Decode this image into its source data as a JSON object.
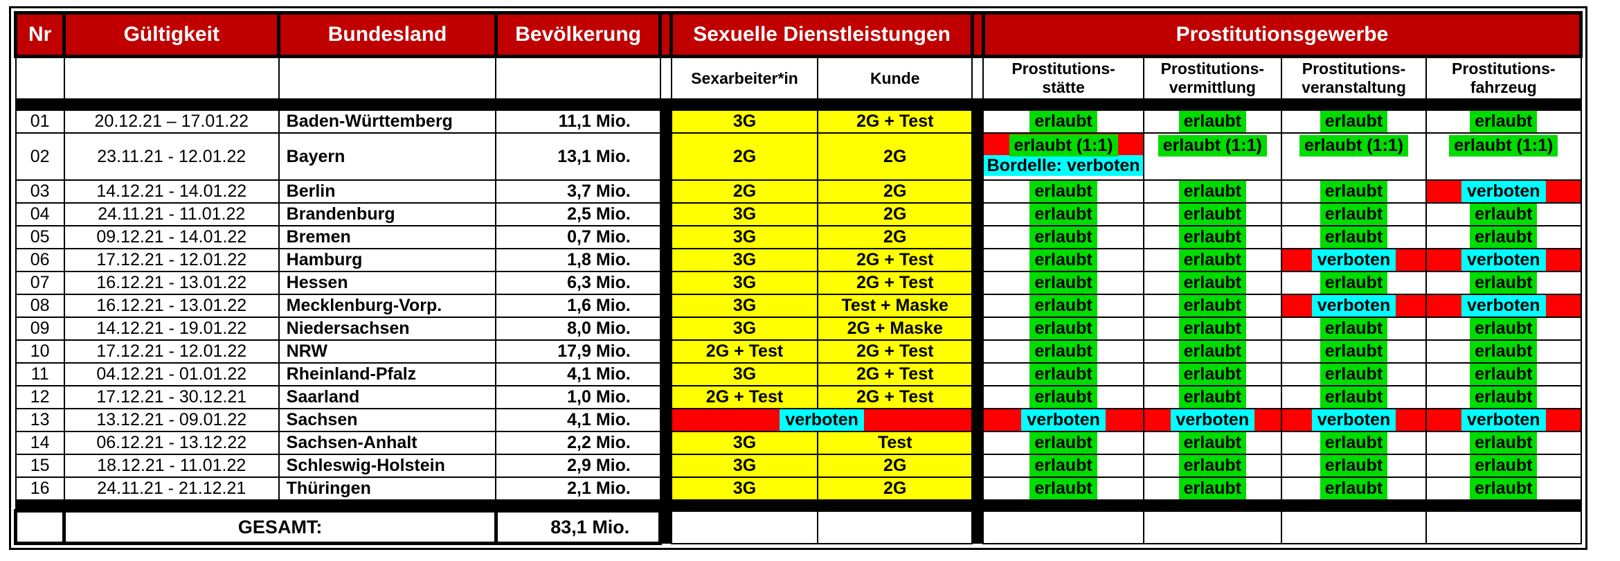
{
  "colors": {
    "header_red": "#C00000",
    "cell_yellow": "#FFFF00",
    "highlight_green": "#00DB00",
    "cell_red": "#FF0000",
    "highlight_cyan": "#00FFFF"
  },
  "table": {
    "header": {
      "nr": "Nr",
      "gueltigkeit": "Gültigkeit",
      "bundesland": "Bundesland",
      "bevoelkerung": "Bevölkerung",
      "sexuelle_dienstleistungen": "Sexuelle Dienstleistungen",
      "prostitutionsgewerbe": "Prostitutionsgewerbe",
      "sub": {
        "sexarbeiter": "Sexarbeiter*in",
        "kunde": "Kunde",
        "staette": {
          "l1": "Prostitutions-",
          "l2": "stätte"
        },
        "vermittlung": {
          "l1": "Prostitutions-",
          "l2": "vermittlung"
        },
        "veranstaltung": {
          "l1": "Prostitutions-",
          "l2": "veranstaltung"
        },
        "fahrzeug": {
          "l1": "Prostitutions-",
          "l2": "fahrzeug"
        }
      }
    },
    "rows": [
      {
        "nr": "01",
        "gueltigkeit": "20.12.21 – 17.01.22",
        "bundesland": "Baden-Württemberg",
        "bevoelkerung": "11,1 Mio.",
        "sexarbeiter": {
          "text": "3G",
          "kind": "yellow"
        },
        "kunde": {
          "text": "2G + Test",
          "kind": "yellow"
        },
        "staette": {
          "text": "erlaubt",
          "kind": "erlaubt"
        },
        "vermittlung": {
          "text": "erlaubt",
          "kind": "erlaubt"
        },
        "veranstaltung": {
          "text": "erlaubt",
          "kind": "erlaubt"
        },
        "fahrzeug": {
          "text": "erlaubt",
          "kind": "erlaubt"
        }
      },
      {
        "nr": "02",
        "tall": true,
        "gueltigkeit": "23.11.21 - 12.01.22",
        "bundesland": "Bayern",
        "bevoelkerung": "13,1 Mio.",
        "sexarbeiter": {
          "text": "2G",
          "kind": "yellow"
        },
        "kunde": {
          "text": "2G",
          "kind": "yellow"
        },
        "staette": {
          "text": "erlaubt (1:1)",
          "note": "Bordelle: verboten",
          "kind": "bayern"
        },
        "vermittlung": {
          "text": "erlaubt (1:1)",
          "kind": "erlaubt",
          "top": true
        },
        "veranstaltung": {
          "text": "erlaubt (1:1)",
          "kind": "erlaubt",
          "top": true
        },
        "fahrzeug": {
          "text": "erlaubt (1:1)",
          "kind": "erlaubt",
          "top": true
        }
      },
      {
        "nr": "03",
        "gueltigkeit": "14.12.21 - 14.01.22",
        "bundesland": "Berlin",
        "bevoelkerung": "3,7 Mio.",
        "sexarbeiter": {
          "text": "2G",
          "kind": "yellow"
        },
        "kunde": {
          "text": "2G",
          "kind": "yellow"
        },
        "staette": {
          "text": "erlaubt",
          "kind": "erlaubt"
        },
        "vermittlung": {
          "text": "erlaubt",
          "kind": "erlaubt"
        },
        "veranstaltung": {
          "text": "erlaubt",
          "kind": "erlaubt"
        },
        "fahrzeug": {
          "text": "verboten",
          "kind": "verboten"
        }
      },
      {
        "nr": "04",
        "gueltigkeit": "24.11.21 - 11.01.22",
        "bundesland": "Brandenburg",
        "bevoelkerung": "2,5 Mio.",
        "sexarbeiter": {
          "text": "3G",
          "kind": "yellow"
        },
        "kunde": {
          "text": "2G",
          "kind": "yellow"
        },
        "staette": {
          "text": "erlaubt",
          "kind": "erlaubt"
        },
        "vermittlung": {
          "text": "erlaubt",
          "kind": "erlaubt"
        },
        "veranstaltung": {
          "text": "erlaubt",
          "kind": "erlaubt"
        },
        "fahrzeug": {
          "text": "erlaubt",
          "kind": "erlaubt"
        }
      },
      {
        "nr": "05",
        "gueltigkeit": "09.12.21 - 14.01.22",
        "bundesland": "Bremen",
        "bevoelkerung": "0,7 Mio.",
        "sexarbeiter": {
          "text": "3G",
          "kind": "yellow"
        },
        "kunde": {
          "text": "2G",
          "kind": "yellow"
        },
        "staette": {
          "text": "erlaubt",
          "kind": "erlaubt"
        },
        "vermittlung": {
          "text": "erlaubt",
          "kind": "erlaubt"
        },
        "veranstaltung": {
          "text": "erlaubt",
          "kind": "erlaubt"
        },
        "fahrzeug": {
          "text": "erlaubt",
          "kind": "erlaubt"
        }
      },
      {
        "nr": "06",
        "gueltigkeit": "17.12.21 - 12.01.22",
        "bundesland": "Hamburg",
        "bevoelkerung": "1,8 Mio.",
        "sexarbeiter": {
          "text": "3G",
          "kind": "yellow"
        },
        "kunde": {
          "text": "2G + Test",
          "kind": "yellow"
        },
        "staette": {
          "text": "erlaubt",
          "kind": "erlaubt"
        },
        "vermittlung": {
          "text": "erlaubt",
          "kind": "erlaubt"
        },
        "veranstaltung": {
          "text": "verboten",
          "kind": "verboten"
        },
        "fahrzeug": {
          "text": "verboten",
          "kind": "verboten"
        }
      },
      {
        "nr": "07",
        "gueltigkeit": "16.12.21 - 13.01.22",
        "bundesland": "Hessen",
        "bevoelkerung": "6,3 Mio.",
        "sexarbeiter": {
          "text": "3G",
          "kind": "yellow"
        },
        "kunde": {
          "text": "2G + Test",
          "kind": "yellow"
        },
        "staette": {
          "text": "erlaubt",
          "kind": "erlaubt"
        },
        "vermittlung": {
          "text": "erlaubt",
          "kind": "erlaubt"
        },
        "veranstaltung": {
          "text": "erlaubt",
          "kind": "erlaubt"
        },
        "fahrzeug": {
          "text": "erlaubt",
          "kind": "erlaubt"
        }
      },
      {
        "nr": "08",
        "gueltigkeit": "16.12.21 - 13.01.22",
        "bundesland": "Mecklenburg-Vorp.",
        "bevoelkerung": "1,6 Mio.",
        "sexarbeiter": {
          "text": "3G",
          "kind": "yellow"
        },
        "kunde": {
          "text": "Test + Maske",
          "kind": "yellow"
        },
        "staette": {
          "text": "erlaubt",
          "kind": "erlaubt"
        },
        "vermittlung": {
          "text": "erlaubt",
          "kind": "erlaubt"
        },
        "veranstaltung": {
          "text": "verboten",
          "kind": "verboten"
        },
        "fahrzeug": {
          "text": "verboten",
          "kind": "verboten"
        }
      },
      {
        "nr": "09",
        "gueltigkeit": "14.12.21 - 19.01.22",
        "bundesland": "Niedersachsen",
        "bevoelkerung": "8,0 Mio.",
        "sexarbeiter": {
          "text": "3G",
          "kind": "yellow"
        },
        "kunde": {
          "text": "2G + Maske",
          "kind": "yellow"
        },
        "staette": {
          "text": "erlaubt",
          "kind": "erlaubt"
        },
        "vermittlung": {
          "text": "erlaubt",
          "kind": "erlaubt"
        },
        "veranstaltung": {
          "text": "erlaubt",
          "kind": "erlaubt"
        },
        "fahrzeug": {
          "text": "erlaubt",
          "kind": "erlaubt"
        }
      },
      {
        "nr": "10",
        "gueltigkeit": "17.12.21 - 12.01.22",
        "bundesland": "NRW",
        "bevoelkerung": "17,9 Mio.",
        "sexarbeiter": {
          "text": "2G + Test",
          "kind": "yellow"
        },
        "kunde": {
          "text": "2G + Test",
          "kind": "yellow"
        },
        "staette": {
          "text": "erlaubt",
          "kind": "erlaubt"
        },
        "vermittlung": {
          "text": "erlaubt",
          "kind": "erlaubt"
        },
        "veranstaltung": {
          "text": "erlaubt",
          "kind": "erlaubt"
        },
        "fahrzeug": {
          "text": "erlaubt",
          "kind": "erlaubt"
        }
      },
      {
        "nr": "11",
        "gueltigkeit": "04.12.21 - 01.01.22",
        "bundesland": "Rheinland-Pfalz",
        "bevoelkerung": "4,1 Mio.",
        "sexarbeiter": {
          "text": "3G",
          "kind": "yellow"
        },
        "kunde": {
          "text": "2G + Test",
          "kind": "yellow"
        },
        "staette": {
          "text": "erlaubt",
          "kind": "erlaubt"
        },
        "vermittlung": {
          "text": "erlaubt",
          "kind": "erlaubt"
        },
        "veranstaltung": {
          "text": "erlaubt",
          "kind": "erlaubt"
        },
        "fahrzeug": {
          "text": "erlaubt",
          "kind": "erlaubt"
        }
      },
      {
        "nr": "12",
        "gueltigkeit": "17.12.21 - 30.12.21",
        "bundesland": "Saarland",
        "bevoelkerung": "1,0 Mio.",
        "sexarbeiter": {
          "text": "2G + Test",
          "kind": "yellow"
        },
        "kunde": {
          "text": "2G + Test",
          "kind": "yellow"
        },
        "staette": {
          "text": "erlaubt",
          "kind": "erlaubt"
        },
        "vermittlung": {
          "text": "erlaubt",
          "kind": "erlaubt"
        },
        "veranstaltung": {
          "text": "erlaubt",
          "kind": "erlaubt"
        },
        "fahrzeug": {
          "text": "erlaubt",
          "kind": "erlaubt"
        }
      },
      {
        "nr": "13",
        "gueltigkeit": "13.12.21 - 09.01.22",
        "bundesland": "Sachsen",
        "bevoelkerung": "4,1 Mio.",
        "sexarbeiter": {
          "text": "verboten",
          "kind": "verboten",
          "span": 2
        },
        "kunde": null,
        "staette": {
          "text": "verboten",
          "kind": "verboten"
        },
        "vermittlung": {
          "text": "verboten",
          "kind": "verboten"
        },
        "veranstaltung": {
          "text": "verboten",
          "kind": "verboten"
        },
        "fahrzeug": {
          "text": "verboten",
          "kind": "verboten"
        }
      },
      {
        "nr": "14",
        "gueltigkeit": "06.12.21 - 13.12.22",
        "bundesland": "Sachsen-Anhalt",
        "bevoelkerung": "2,2 Mio.",
        "sexarbeiter": {
          "text": "3G",
          "kind": "yellow"
        },
        "kunde": {
          "text": "Test",
          "kind": "yellow"
        },
        "staette": {
          "text": "erlaubt",
          "kind": "erlaubt"
        },
        "vermittlung": {
          "text": "erlaubt",
          "kind": "erlaubt"
        },
        "veranstaltung": {
          "text": "erlaubt",
          "kind": "erlaubt"
        },
        "fahrzeug": {
          "text": "erlaubt",
          "kind": "erlaubt"
        }
      },
      {
        "nr": "15",
        "gueltigkeit": "18.12.21 - 11.01.22",
        "bundesland": "Schleswig-Holstein",
        "bevoelkerung": "2,9 Mio.",
        "sexarbeiter": {
          "text": "3G",
          "kind": "yellow"
        },
        "kunde": {
          "text": "2G",
          "kind": "yellow"
        },
        "staette": {
          "text": "erlaubt",
          "kind": "erlaubt"
        },
        "vermittlung": {
          "text": "erlaubt",
          "kind": "erlaubt"
        },
        "veranstaltung": {
          "text": "erlaubt",
          "kind": "erlaubt"
        },
        "fahrzeug": {
          "text": "erlaubt",
          "kind": "erlaubt"
        }
      },
      {
        "nr": "16",
        "gueltigkeit": "24.11.21 - 21.12.21",
        "bundesland": "Thüringen",
        "bevoelkerung": "2,1 Mio.",
        "sexarbeiter": {
          "text": "3G",
          "kind": "yellow"
        },
        "kunde": {
          "text": "2G",
          "kind": "yellow"
        },
        "staette": {
          "text": "erlaubt",
          "kind": "erlaubt"
        },
        "vermittlung": {
          "text": "erlaubt",
          "kind": "erlaubt"
        },
        "veranstaltung": {
          "text": "erlaubt",
          "kind": "erlaubt"
        },
        "fahrzeug": {
          "text": "erlaubt",
          "kind": "erlaubt"
        }
      }
    ],
    "footer": {
      "label": "GESAMT:",
      "value": "83,1 Mio."
    }
  }
}
